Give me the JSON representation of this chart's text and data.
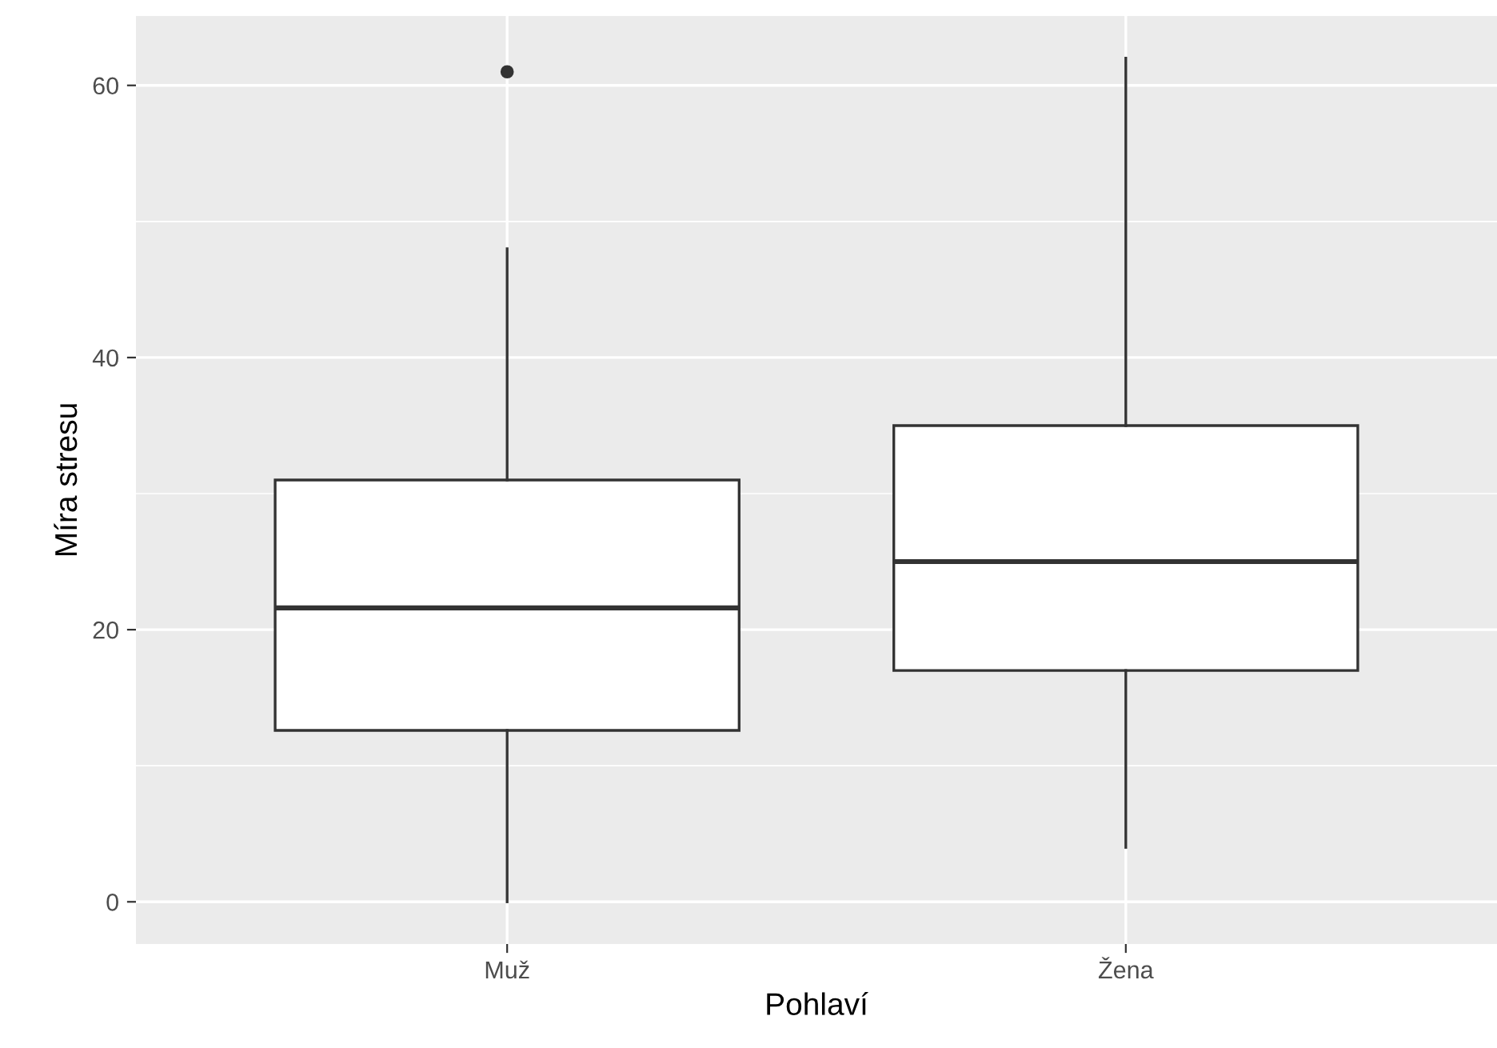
{
  "chart_data": {
    "type": "box",
    "xlabel": "Pohlaví",
    "ylabel": "Míra stresu",
    "categories": [
      "Muž",
      "Žena"
    ],
    "boxes": [
      {
        "low": 0,
        "q1": 12.6,
        "median": 21.6,
        "q3": 31,
        "high": 48,
        "outliers": [
          61
        ]
      },
      {
        "low": 4,
        "q1": 17,
        "median": 25,
        "q3": 35,
        "high": 62
      }
    ],
    "color": "#ffffff",
    "ylim": [
      -3.1,
      65.1
    ],
    "yticks": [
      0,
      20,
      40,
      60
    ],
    "grid": true
  }
}
